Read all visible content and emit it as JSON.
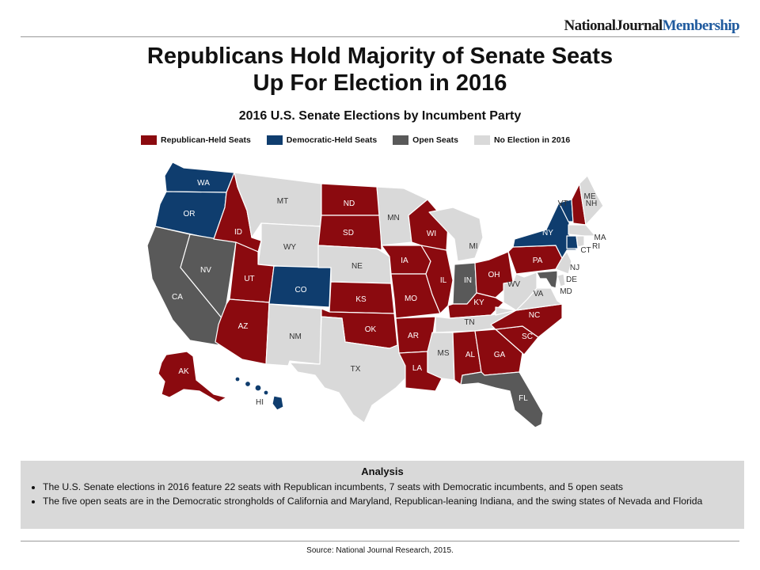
{
  "brand": {
    "part1": "NationalJournal",
    "part2": "Membership"
  },
  "title_line1": "Republicans Hold Majority of Senate Seats",
  "title_line2": "Up For Election in 2016",
  "subtitle": "2016 U.S. Senate Elections by Incumbent Party",
  "colors": {
    "republican": "#8b0a0f",
    "democratic": "#0f3d6e",
    "open": "#595959",
    "none": "#d9d9d9"
  },
  "legend": [
    {
      "key": "republican",
      "label": "Republican-Held Seats"
    },
    {
      "key": "democratic",
      "label": "Democratic-Held Seats"
    },
    {
      "key": "open",
      "label": "Open Seats"
    },
    {
      "key": "none",
      "label": "No Election in 2016"
    }
  ],
  "states": {
    "WA": "democratic",
    "OR": "democratic",
    "CA": "open",
    "NV": "open",
    "ID": "republican",
    "MT": "none",
    "WY": "none",
    "UT": "republican",
    "AZ": "republican",
    "CO": "democratic",
    "NM": "none",
    "ND": "republican",
    "SD": "republican",
    "NE": "none",
    "KS": "republican",
    "OK": "republican",
    "TX": "none",
    "MN": "none",
    "IA": "republican",
    "MO": "republican",
    "AR": "republican",
    "LA": "republican",
    "WI": "republican",
    "IL": "republican",
    "MI": "none",
    "IN": "open",
    "OH": "republican",
    "KY": "republican",
    "TN": "none",
    "MS": "none",
    "AL": "republican",
    "GA": "republican",
    "FL": "open",
    "SC": "republican",
    "NC": "republican",
    "VA": "none",
    "WV": "none",
    "PA": "republican",
    "NY": "democratic",
    "VT": "democratic",
    "NH": "republican",
    "ME": "none",
    "MA": "none",
    "RI": "none",
    "CT": "democratic",
    "NJ": "none",
    "DE": "none",
    "MD": "open",
    "AK": "republican",
    "HI": "democratic"
  },
  "analysis": {
    "heading": "Analysis",
    "bullet1": "The U.S. Senate elections in 2016 feature 22 seats with Republican incumbents, 7 seats with Democratic incumbents, and 5 open seats",
    "bullet2": "The five open seats are in the Democratic strongholds of California and Maryland, Republican-leaning Indiana, and the swing states of Nevada and Florida"
  },
  "source": "Source: National Journal Research, 2015."
}
